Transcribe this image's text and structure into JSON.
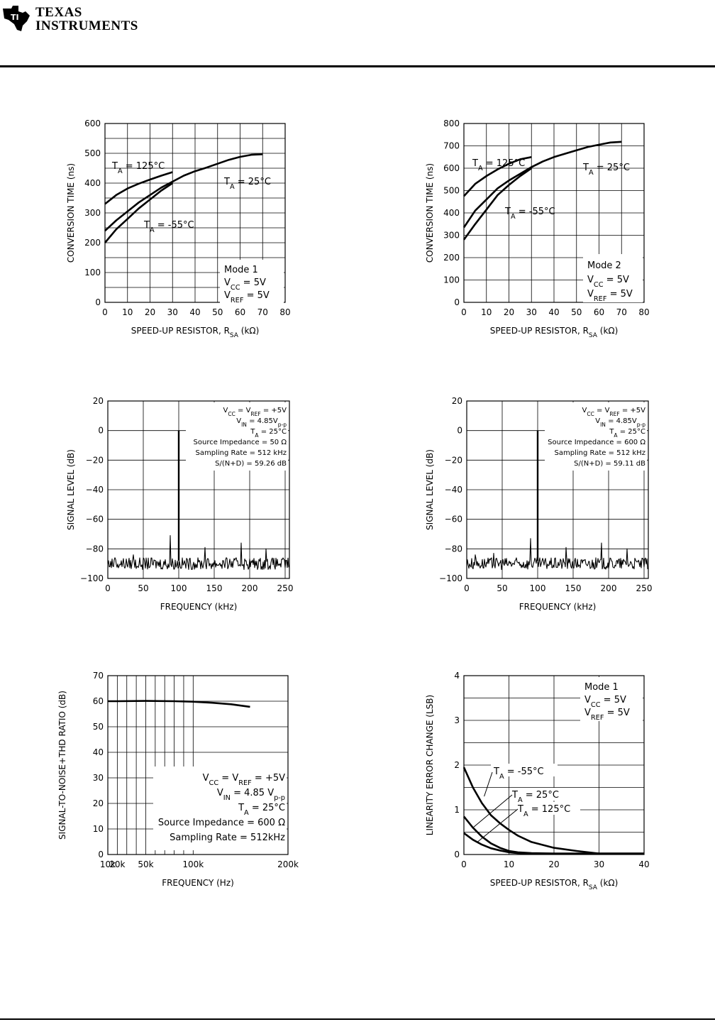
{
  "header": {
    "logo_line1": "TEXAS",
    "logo_line2": "INSTRUMENTS",
    "logo_icon": "ti-state-logo-icon"
  },
  "chart_data": [
    {
      "type": "line",
      "xlabel": "SPEED-UP RESISTOR, RSA (kΩ)",
      "ylabel": "CONVERSION TIME (ns)",
      "xlim": [
        0,
        80
      ],
      "ylim": [
        0,
        600
      ],
      "xticks": [
        0,
        10,
        20,
        30,
        40,
        50,
        60,
        70,
        80
      ],
      "yticks": [
        0,
        100,
        200,
        300,
        400,
        500,
        600
      ],
      "grid": true,
      "series": [
        {
          "name": "TA = 125°C",
          "x": [
            0,
            5,
            10,
            15,
            20,
            25,
            30
          ],
          "y": [
            330,
            360,
            382,
            398,
            412,
            425,
            437
          ]
        },
        {
          "name": "TA = 25°C",
          "x": [
            0,
            5,
            10,
            15,
            20,
            25,
            30,
            35,
            40,
            45,
            50,
            55,
            60,
            65,
            70
          ],
          "y": [
            240,
            275,
            305,
            335,
            360,
            385,
            405,
            425,
            440,
            452,
            465,
            478,
            488,
            495,
            497
          ]
        },
        {
          "name": "TA = -55°C",
          "x": [
            0,
            5,
            10,
            15,
            20,
            25,
            30
          ],
          "y": [
            200,
            245,
            280,
            315,
            345,
            375,
            400
          ]
        }
      ],
      "labels": {
        "t125": "TA = 125°C",
        "t25": "TA = 25°C",
        "tm55": "TA = -55°C"
      },
      "conditions": [
        "Mode 1",
        "VCC = 5V",
        "VREF = 5V"
      ]
    },
    {
      "type": "line",
      "xlabel": "SPEED-UP RESISTOR, RSA (kΩ)",
      "ylabel": "CONVERSION TIME (ns)",
      "xlim": [
        0,
        80
      ],
      "ylim": [
        0,
        800
      ],
      "xticks": [
        0,
        10,
        20,
        30,
        40,
        50,
        60,
        70,
        80
      ],
      "yticks": [
        0,
        100,
        200,
        300,
        400,
        500,
        600,
        700,
        800
      ],
      "grid": true,
      "series": [
        {
          "name": "TA = 125°C",
          "x": [
            0,
            5,
            10,
            15,
            20,
            25,
            30
          ],
          "y": [
            475,
            530,
            565,
            595,
            620,
            640,
            650
          ]
        },
        {
          "name": "TA = 25°C",
          "x": [
            0,
            5,
            10,
            15,
            20,
            25,
            30,
            35,
            40,
            45,
            50,
            55,
            60,
            65,
            70
          ],
          "y": [
            335,
            410,
            460,
            510,
            545,
            575,
            605,
            630,
            650,
            665,
            680,
            695,
            705,
            715,
            718
          ]
        },
        {
          "name": "TA = -55°C",
          "x": [
            0,
            5,
            10,
            15,
            20,
            25,
            30
          ],
          "y": [
            280,
            350,
            415,
            480,
            525,
            565,
            600
          ]
        }
      ],
      "labels": {
        "t125": "TA = 125°C",
        "t25": "TA = 25°C",
        "tm55": "TA = -55°C"
      },
      "conditions": [
        "Mode 2",
        "VCC = 5V",
        "VREF = 5V"
      ]
    },
    {
      "type": "line",
      "xlabel": "FREQUENCY (kHz)",
      "ylabel": "SIGNAL LEVEL (dB)",
      "xlim": [
        0,
        256
      ],
      "ylim": [
        -100,
        20
      ],
      "xticks": [
        0,
        50,
        100,
        150,
        200,
        250
      ],
      "yticks": [
        20,
        0,
        -20,
        -40,
        -60,
        -80,
        -100
      ],
      "grid": true,
      "fundamental_khz": 100,
      "fundamental_db": 0,
      "noise_floor_db": -90,
      "spurs": [
        [
          10,
          -86
        ],
        [
          36,
          -84
        ],
        [
          88,
          -71
        ],
        [
          137,
          -79
        ],
        [
          188,
          -76
        ],
        [
          223,
          -80
        ]
      ],
      "conditions": [
        "VCC = VREF = +5V",
        "VIN = 4.85Vp-p",
        "TA = 25°C",
        "Source Impedance = 50 Ω",
        "Sampling Rate = 512 kHz",
        "S/(N+D) = 59.26 dB"
      ]
    },
    {
      "type": "line",
      "xlabel": "FREQUENCY (kHz)",
      "ylabel": "SIGNAL LEVEL (dB)",
      "xlim": [
        0,
        256
      ],
      "ylim": [
        -100,
        20
      ],
      "xticks": [
        0,
        50,
        100,
        150,
        200,
        250
      ],
      "yticks": [
        20,
        0,
        -20,
        -40,
        -60,
        -80,
        -100
      ],
      "grid": true,
      "fundamental_khz": 100,
      "fundamental_db": 0,
      "noise_floor_db": -90,
      "spurs": [
        [
          12,
          -84
        ],
        [
          38,
          -83
        ],
        [
          90,
          -73
        ],
        [
          140,
          -79
        ],
        [
          190,
          -76
        ],
        [
          226,
          -80
        ]
      ],
      "conditions": [
        "VCC = VREF = +5V",
        "VIN = 4.85Vp-p",
        "TA = 25°C",
        "Source Impedance = 600 Ω",
        "Sampling Rate = 512 kHz",
        "S/(N+D) = 59.11 dB"
      ]
    },
    {
      "type": "line",
      "xscale": "log",
      "xlabel": "FREQUENCY (Hz)",
      "ylabel": "SIGNAL-TO-NOISE+THD RATIO (dB)",
      "xlim": [
        10000,
        200000
      ],
      "ylim": [
        0,
        70
      ],
      "xticks": [
        10000,
        20000,
        50000,
        100000,
        200000
      ],
      "xtick_labels": [
        "10k",
        "20k",
        "50k",
        "100k",
        "200k"
      ],
      "yticks": [
        0,
        10,
        20,
        30,
        40,
        50,
        60,
        70
      ],
      "grid": true,
      "series": [
        {
          "name": "S/(N+THD)",
          "x": [
            10000,
            20000,
            50000,
            80000,
            100000,
            120000,
            140000,
            160000
          ],
          "y": [
            60,
            60,
            60.1,
            60,
            59.8,
            59.4,
            58.8,
            57.8
          ]
        }
      ],
      "conditions": [
        "VCC = VREF = +5V",
        "VIN = 4.85 Vp-p",
        "TA = 25°C",
        "Source Impedance = 600 Ω",
        "Sampling Rate = 512kHz"
      ]
    },
    {
      "type": "line",
      "xlabel": "SPEED-UP RESISTOR, RSA (kΩ)",
      "ylabel": "LINEARITY ERROR CHANGE (LSB)",
      "xlim": [
        0,
        40
      ],
      "ylim": [
        0,
        4
      ],
      "xticks": [
        0,
        10,
        20,
        30,
        40
      ],
      "yticks": [
        0,
        1,
        2,
        3,
        4
      ],
      "grid": true,
      "series": [
        {
          "name": "TA = -55°C",
          "x": [
            0,
            2,
            4,
            6,
            8,
            10,
            12,
            15,
            20,
            25,
            30,
            35,
            40
          ],
          "y": [
            1.95,
            1.5,
            1.15,
            0.88,
            0.7,
            0.55,
            0.42,
            0.28,
            0.15,
            0.08,
            0.02,
            0.02,
            0.02
          ]
        },
        {
          "name": "TA = 25°C",
          "x": [
            0,
            2,
            4,
            6,
            8,
            10,
            12,
            15,
            20,
            30,
            40
          ],
          "y": [
            0.85,
            0.6,
            0.4,
            0.25,
            0.15,
            0.08,
            0.05,
            0.03,
            0.02,
            0.02,
            0.02
          ]
        },
        {
          "name": "TA = 125°C",
          "x": [
            0,
            2,
            4,
            6,
            8,
            10,
            12,
            15,
            20,
            30,
            40
          ],
          "y": [
            0.48,
            0.33,
            0.22,
            0.14,
            0.09,
            0.05,
            0.03,
            0.02,
            0.02,
            0.02,
            0.02
          ]
        }
      ],
      "labels": {
        "tm55": "TA = -55°C",
        "t25": "TA = 25°C",
        "t125": "TA = 125°C"
      },
      "conditions": [
        "Mode 1",
        "VCC = 5V",
        "VREF = 5V"
      ]
    }
  ]
}
